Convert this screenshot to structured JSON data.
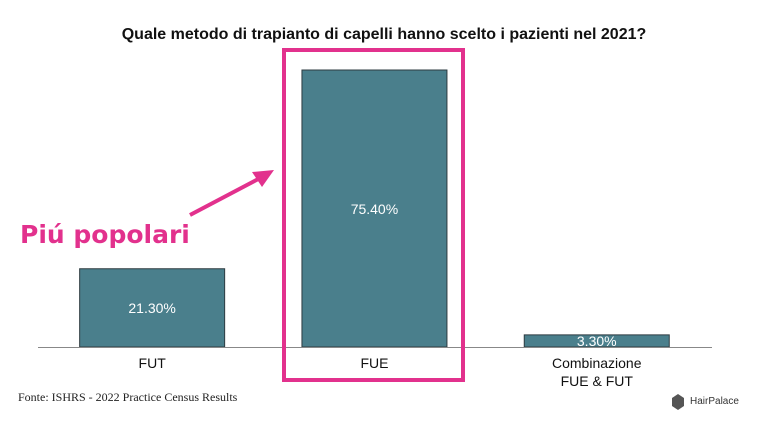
{
  "chart_data": {
    "type": "bar",
    "title": "Quale metodo di trapianto di capelli hanno scelto i pazienti nel 2021?",
    "categories": [
      "FUT",
      "FUE",
      "Combinazione\nFUE & FUT"
    ],
    "values": [
      21.3,
      75.4,
      3.3
    ],
    "value_labels": [
      "21.30%",
      "75.40%",
      "3.30%"
    ],
    "color": "#4a7f8c",
    "annotation": "Piú popolari",
    "source": "Fonte: ISHRS - 2022 Practice Census Results",
    "logo": "HairPalace"
  }
}
